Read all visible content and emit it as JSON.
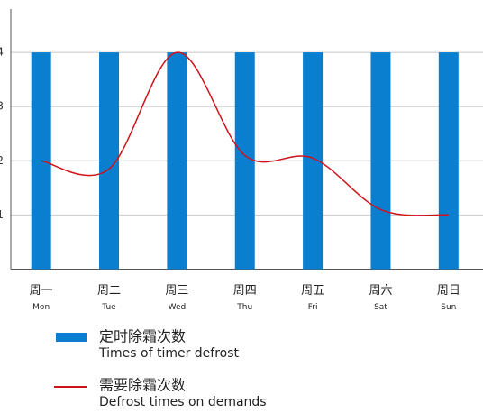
{
  "chart_data": {
    "type": "bar",
    "categories": [
      "周一",
      "周二",
      "周三",
      "周四",
      "周五",
      "周六",
      "周日"
    ],
    "category_subtitles": [
      "Mon",
      "Tue",
      "Wed",
      "Thu",
      "Fri",
      "Sat",
      "Sun"
    ],
    "series": [
      {
        "name": "定时除霜次数",
        "subtitle": "Times of timer defrost",
        "type": "bar",
        "color": "#0a7fcf",
        "values": [
          4,
          4,
          4,
          4,
          4,
          4,
          4
        ]
      },
      {
        "name": "需要除霜次数",
        "subtitle": "Defrost times on demands",
        "type": "line",
        "color": "#d0121b",
        "values": [
          2,
          1.85,
          4,
          2.1,
          2.05,
          1.1,
          1
        ]
      }
    ],
    "ylim": [
      0,
      4.8
    ],
    "yticks": [
      1,
      2,
      3,
      4
    ],
    "grid": true
  }
}
